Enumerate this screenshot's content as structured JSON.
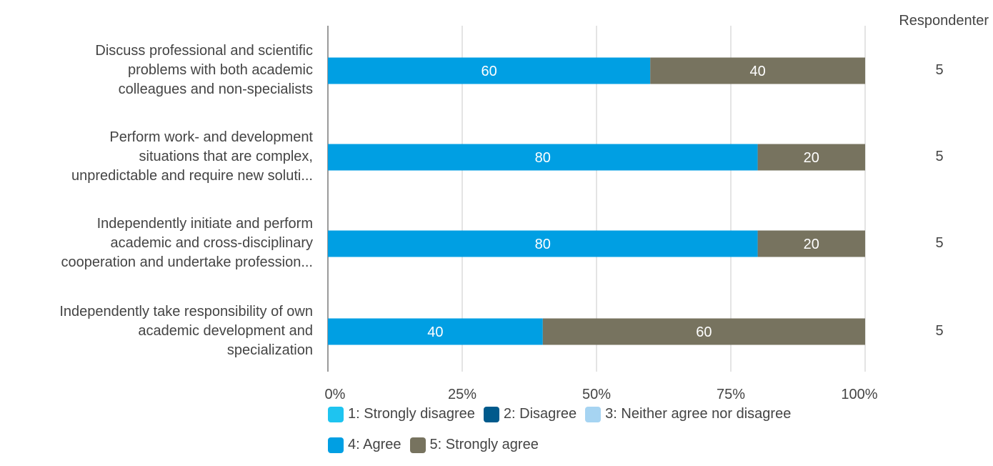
{
  "chart_data": {
    "type": "bar",
    "orientation": "horizontal",
    "stacked": true,
    "categories": [
      "Discuss professional and scientific problems with both academic colleagues and non-specialists",
      "Perform work- and development situations that are complex, unpredictable and require new soluti...",
      "Independently initiate and perform academic and cross-disciplinary cooperation and undertake profession...",
      "Independently take responsibility of own academic development and specialization"
    ],
    "category_lines": [
      [
        "Discuss professional and scientific",
        "problems with both academic",
        "colleagues and non-specialists"
      ],
      [
        "Perform work- and development",
        "situations that are complex,",
        "unpredictable and require new soluti..."
      ],
      [
        "Independently initiate and perform",
        "academic and cross-disciplinary",
        "cooperation and undertake profession..."
      ],
      [
        "Independently take responsibility of own",
        "academic development and",
        "specialization"
      ]
    ],
    "series": [
      {
        "name": "1: Strongly disagree",
        "color": "#1EC4F0",
        "values": [
          0,
          0,
          0,
          0
        ]
      },
      {
        "name": "2: Disagree",
        "color": "#005A8C",
        "values": [
          0,
          0,
          0,
          0
        ]
      },
      {
        "name": "3: Neither agree nor disagree",
        "color": "#A6D4F2",
        "values": [
          0,
          0,
          0,
          0
        ]
      },
      {
        "name": "4: Agree",
        "color": "#009FE3",
        "values": [
          60,
          80,
          80,
          40
        ]
      },
      {
        "name": "5: Strongly agree",
        "color": "#77735F",
        "values": [
          40,
          20,
          20,
          60
        ]
      }
    ],
    "xlim": [
      0,
      100
    ],
    "xticks": [
      "0%",
      "25%",
      "50%",
      "75%",
      "100%"
    ],
    "grid": true,
    "legend_position": "bottom",
    "respondents_header": "Respondenter",
    "respondents": [
      "5",
      "5",
      "5",
      "5"
    ]
  }
}
